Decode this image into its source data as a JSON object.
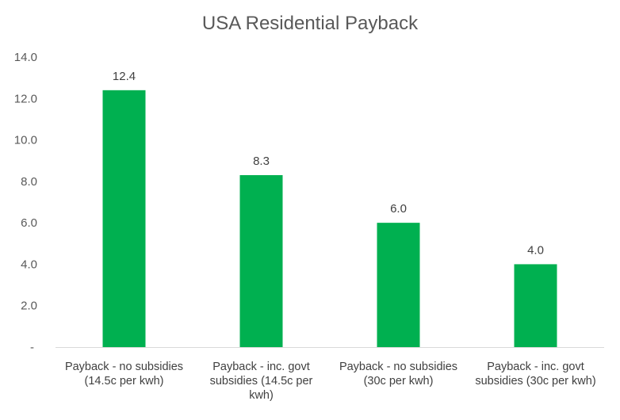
{
  "chart_data": {
    "type": "bar",
    "title": "USA Residential Payback",
    "categories": [
      [
        "Payback - no subsidies",
        "(14.5c per kwh)"
      ],
      [
        "Payback - inc. govt",
        "subsidies (14.5c per",
        "kwh)"
      ],
      [
        "Payback - no subsidies",
        "(30c per kwh)"
      ],
      [
        "Payback - inc. govt",
        "subsidies (30c per kwh)"
      ]
    ],
    "values": [
      12.4,
      8.3,
      6.0,
      4.0
    ],
    "data_labels": [
      "12.4",
      "8.3",
      "6.0",
      "4.0"
    ],
    "ylim": [
      0,
      14
    ],
    "yticks": [
      0,
      2,
      4,
      6,
      8,
      10,
      12,
      14
    ],
    "ytick_labels": [
      "-",
      "2.0",
      "4.0",
      "6.0",
      "8.0",
      "10.0",
      "12.0",
      "14.0"
    ],
    "xlabel": "",
    "ylabel": "",
    "grid": false,
    "legend": "none",
    "bar_color": "#00B050",
    "axis_color": "#D9D9D9"
  }
}
